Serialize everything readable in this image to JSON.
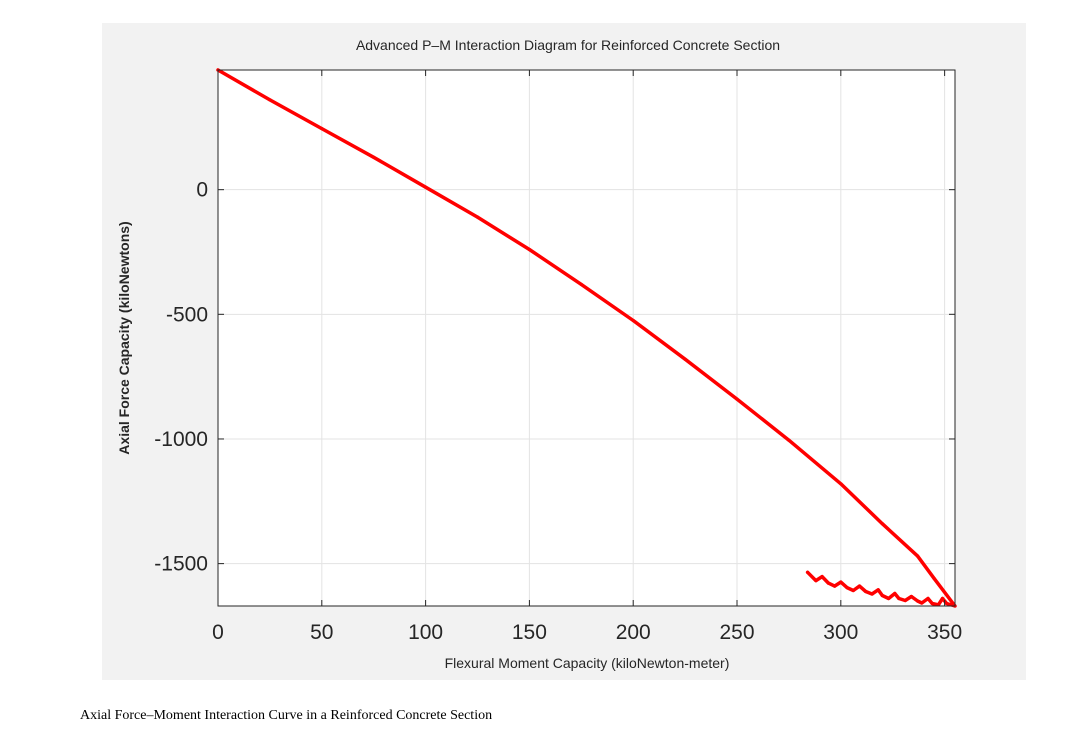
{
  "caption": "Axial Force–Moment Interaction Curve in a Reinforced Concrete Section",
  "colors": {
    "figure_background": "#f2f2f2",
    "axes_background": "#ffffff",
    "grid": "#e3e3e3",
    "axis": "#262626",
    "curve": "#ff0000"
  },
  "chart_data": {
    "type": "line",
    "title": "Advanced P–M Interaction Diagram for Reinforced Concrete Section",
    "xlabel": "Flexural Moment Capacity (kiloNewton-meter)",
    "ylabel": "Axial Force Capacity (kiloNewtons)",
    "xlim": [
      0,
      355
    ],
    "ylim": [
      -1670,
      480
    ],
    "xticks": [
      0,
      50,
      100,
      150,
      200,
      250,
      300,
      350
    ],
    "yticks": [
      -1500,
      -1000,
      -500,
      0
    ],
    "grid": true,
    "legend": "none",
    "series": [
      {
        "color": "#ff0000",
        "x": [
          0,
          25,
          50,
          75,
          100,
          125,
          150,
          175,
          200,
          225,
          250,
          275,
          300,
          320,
          337,
          345,
          355,
          351,
          349,
          347,
          344,
          342,
          339,
          337,
          334,
          331,
          328,
          326,
          323,
          320,
          318,
          315,
          312,
          309,
          306,
          303,
          300,
          297,
          294,
          291,
          288,
          284
        ],
        "y": [
          480,
          360,
          245,
          130,
          10,
          -110,
          -240,
          -380,
          -525,
          -680,
          -840,
          -1005,
          -1180,
          -1340,
          -1470,
          -1560,
          -1670,
          -1660,
          -1640,
          -1665,
          -1660,
          -1640,
          -1658,
          -1650,
          -1632,
          -1648,
          -1640,
          -1620,
          -1640,
          -1628,
          -1605,
          -1622,
          -1612,
          -1590,
          -1608,
          -1596,
          -1574,
          -1590,
          -1578,
          -1552,
          -1568,
          -1535
        ]
      }
    ]
  }
}
